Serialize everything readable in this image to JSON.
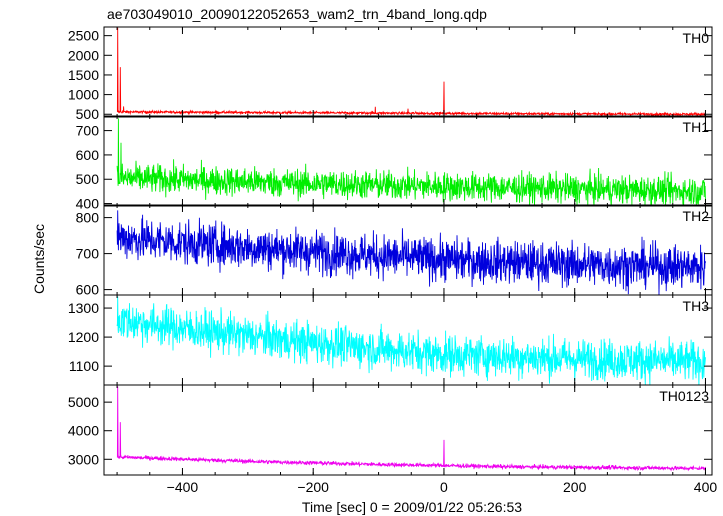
{
  "chart_data": {
    "type": "line",
    "title": "ae703049010_20090122052653_wam2_trn_4band_long.qdp",
    "xlabel": "Time [sec] 0 = 2009/01/22 05:26:53",
    "ylabel": "Counts/sec",
    "xlim": [
      -520,
      410
    ],
    "xticks": [
      -400,
      -200,
      0,
      200,
      400
    ],
    "xtick_labels": [
      "−400",
      "−200",
      "0",
      "200",
      "400"
    ],
    "grid": false,
    "panels": [
      {
        "name": "TH0",
        "color": "#ff0000",
        "ylim": [
          430,
          2720
        ],
        "yticks": [
          500,
          1000,
          1500,
          2000,
          2500
        ],
        "baseline": [
          [
            -500,
            560
          ],
          [
            -300,
            545
          ],
          [
            -100,
            530
          ],
          [
            100,
            515
          ],
          [
            300,
            505
          ],
          [
            400,
            500
          ]
        ],
        "noise": 15,
        "spikes": [
          [
            -499,
            2700
          ],
          [
            -495,
            1700
          ],
          [
            -490,
            700
          ],
          [
            -105,
            690
          ],
          [
            -55,
            640
          ],
          [
            0,
            1330
          ]
        ]
      },
      {
        "name": "TH1",
        "color": "#00ee00",
        "ylim": [
          390,
          760
        ],
        "yticks": [
          400,
          500,
          600,
          700
        ],
        "baseline": [
          [
            -500,
            505
          ],
          [
            -400,
            498
          ],
          [
            -200,
            482
          ],
          [
            0,
            470
          ],
          [
            200,
            460
          ],
          [
            400,
            450
          ]
        ],
        "noise": 30,
        "spikes": [
          [
            -498,
            750
          ],
          [
            -494,
            650
          ]
        ]
      },
      {
        "name": "TH2",
        "color": "#0000dd",
        "ylim": [
          585,
          835
        ],
        "yticks": [
          600,
          700,
          800
        ],
        "baseline": [
          [
            -500,
            745
          ],
          [
            -400,
            730
          ],
          [
            -200,
            705
          ],
          [
            0,
            683
          ],
          [
            200,
            670
          ],
          [
            400,
            662
          ]
        ],
        "noise": 30,
        "spikes": [
          [
            -499,
            820
          ]
        ]
      },
      {
        "name": "TH3",
        "color": "#00ffff",
        "ylim": [
          1035,
          1345
        ],
        "yticks": [
          1100,
          1200,
          1300
        ],
        "baseline": [
          [
            -500,
            1260
          ],
          [
            -400,
            1230
          ],
          [
            -200,
            1180
          ],
          [
            0,
            1140
          ],
          [
            200,
            1125
          ],
          [
            400,
            1115
          ]
        ],
        "noise": 35,
        "spikes": [
          [
            -499,
            1340
          ]
        ]
      },
      {
        "name": "TH0123",
        "color": "#ee00ee",
        "ylim": [
          2450,
          5600
        ],
        "yticks": [
          3000,
          4000,
          5000
        ],
        "baseline": [
          [
            -500,
            3080
          ],
          [
            -300,
            2930
          ],
          [
            -100,
            2820
          ],
          [
            100,
            2740
          ],
          [
            300,
            2700
          ],
          [
            400,
            2680
          ]
        ],
        "noise": 35,
        "spikes": [
          [
            -499,
            5550
          ],
          [
            -495,
            4300
          ],
          [
            0,
            3680
          ]
        ]
      }
    ]
  }
}
